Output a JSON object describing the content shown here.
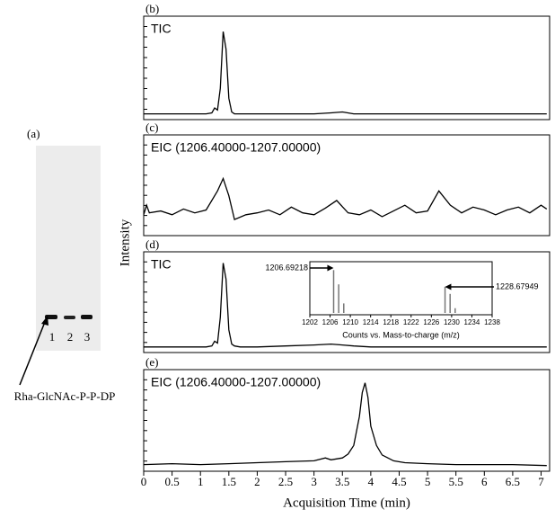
{
  "figure": {
    "y_label": "Intensity",
    "x_label": "Acquisition Time (min)"
  },
  "gel": {
    "panel": "(a)",
    "lanes": [
      "1",
      "2",
      "3"
    ],
    "annotation": "Rha-GlcNAc-P-P-DP"
  },
  "chart_data": [
    {
      "type": "line",
      "panel": "(b)",
      "title": "TIC",
      "color": "#000000",
      "x": [
        0,
        0.5,
        1,
        1.1,
        1.2,
        1.25,
        1.3,
        1.35,
        1.4,
        1.45,
        1.5,
        1.55,
        1.6,
        1.7,
        2,
        2.5,
        3,
        3.3,
        3.5,
        3.7,
        4,
        5,
        6,
        7.1
      ],
      "values": [
        4,
        4,
        4,
        4,
        5,
        10,
        8,
        30,
        88,
        70,
        20,
        6,
        4,
        4,
        4,
        4,
        4,
        5,
        6,
        4,
        4,
        4,
        4,
        4
      ],
      "xlim": [
        0,
        7.15
      ],
      "ylim": [
        0,
        100
      ]
    },
    {
      "type": "line",
      "panel": "(c)",
      "title": "EIC (1206.40000-1207.00000)",
      "color": "#000000",
      "x": [
        0,
        0.05,
        0.1,
        0.3,
        0.5,
        0.7,
        0.9,
        1.1,
        1.3,
        1.4,
        1.5,
        1.6,
        1.8,
        2.0,
        2.2,
        2.4,
        2.6,
        2.8,
        3.0,
        3.2,
        3.4,
        3.6,
        3.8,
        4.0,
        4.2,
        4.4,
        4.6,
        4.8,
        5.0,
        5.2,
        5.4,
        5.6,
        5.8,
        6.0,
        6.2,
        6.4,
        6.6,
        6.8,
        7.0,
        7.1
      ],
      "values": [
        20,
        30,
        22,
        24,
        20,
        26,
        22,
        25,
        45,
        58,
        40,
        15,
        20,
        22,
        25,
        20,
        28,
        22,
        20,
        27,
        35,
        22,
        20,
        25,
        18,
        24,
        30,
        22,
        24,
        45,
        30,
        22,
        28,
        25,
        20,
        25,
        28,
        22,
        30,
        26
      ],
      "xlim": [
        0,
        7.15
      ],
      "ylim": [
        0,
        100
      ]
    },
    {
      "type": "line",
      "panel": "(d)",
      "title": "TIC",
      "color": "#000000",
      "x": [
        0,
        0.5,
        1,
        1.1,
        1.2,
        1.25,
        1.3,
        1.35,
        1.4,
        1.45,
        1.5,
        1.55,
        1.6,
        1.7,
        2,
        2.5,
        3,
        3.3,
        3.5,
        3.7,
        4,
        5,
        6,
        7.1
      ],
      "values": [
        4,
        4,
        4,
        4,
        5,
        10,
        8,
        35,
        92,
        75,
        22,
        7,
        5,
        4,
        4,
        5,
        6,
        7,
        6,
        5,
        4,
        4,
        4,
        4
      ],
      "xlim": [
        0,
        7.15
      ],
      "ylim": [
        0,
        100
      ]
    },
    {
      "type": "stem",
      "x_label": "Counts vs. Mass-to-charge (m/z)",
      "color": "#777777",
      "x": [
        1206.7,
        1207.7,
        1208.7,
        1228.7,
        1229.7,
        1230.7
      ],
      "values": [
        90,
        60,
        20,
        55,
        40,
        10
      ],
      "xlim": [
        1202,
        1238
      ],
      "ylim": [
        0,
        100
      ],
      "xticks": [
        1202,
        1206,
        1210,
        1214,
        1218,
        1222,
        1226,
        1230,
        1234,
        1238
      ],
      "annotations": [
        {
          "label": "1206.69218",
          "x": 1206.69218
        },
        {
          "label": "1228.67949",
          "x": 1228.67949
        }
      ]
    },
    {
      "type": "line",
      "panel": "(e)",
      "title": "EIC (1206.40000-1207.00000)",
      "color": "#000000",
      "x": [
        0,
        0.5,
        1,
        1.5,
        2,
        2.5,
        3,
        3.2,
        3.3,
        3.5,
        3.6,
        3.7,
        3.8,
        3.85,
        3.9,
        3.95,
        4.0,
        4.1,
        4.2,
        4.4,
        4.6,
        5,
        5.5,
        6,
        6.5,
        7.1
      ],
      "values": [
        5,
        6,
        5,
        6,
        7,
        8,
        9,
        12,
        10,
        12,
        16,
        25,
        55,
        80,
        90,
        75,
        45,
        25,
        15,
        9,
        7,
        6,
        5,
        5,
        5,
        4
      ],
      "xlim": [
        0,
        7.15
      ],
      "ylim": [
        0,
        100
      ],
      "xticks": [
        0,
        0.5,
        1,
        1.5,
        2,
        2.5,
        3,
        3.5,
        4,
        4.5,
        5,
        5.5,
        6,
        6.5,
        7
      ]
    }
  ]
}
